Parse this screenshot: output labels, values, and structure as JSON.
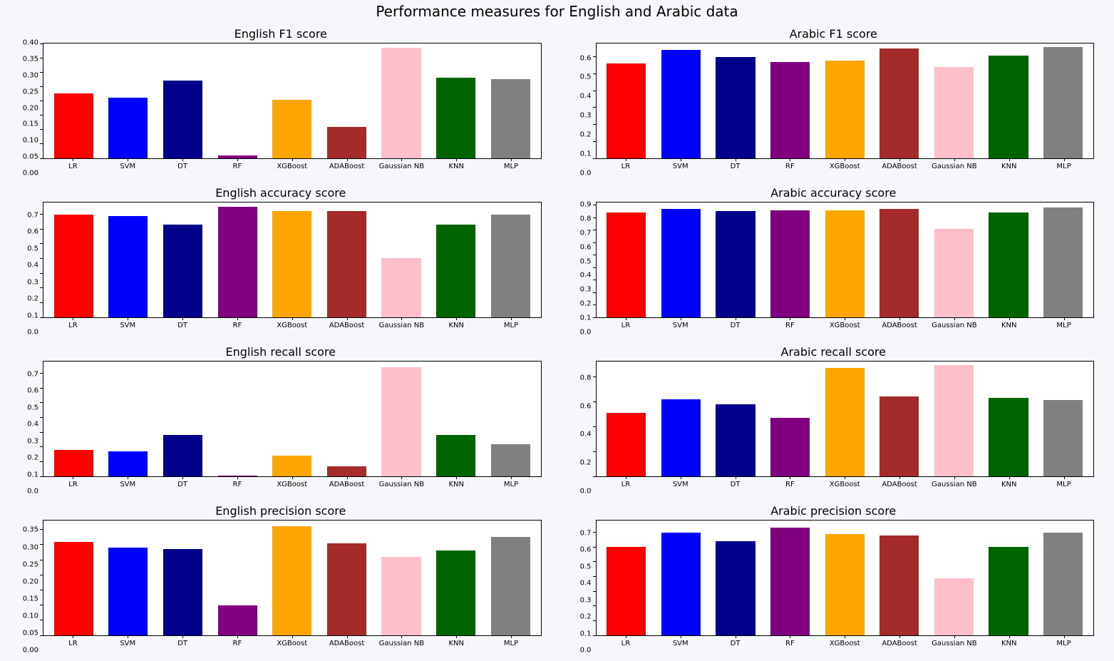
{
  "suptitle": "Performance measures for English and Arabic data",
  "background_color": "#f6f7fb",
  "plot_background": "#ffffff",
  "border_color": "#000000",
  "suptitle_fontsize": 20,
  "panel_title_fontsize": 16,
  "tick_fontsize": 10,
  "categories": [
    "LR",
    "SVM",
    "DT",
    "RF",
    "XGBoost",
    "ADABoost",
    "Gaussian NB",
    "KNN",
    "MLP"
  ],
  "bar_colors": [
    "#ff0000",
    "#0000ff",
    "#00008b",
    "#800080",
    "#ffa500",
    "#a52a2a",
    "#ffc0cb",
    "#006400",
    "#808080"
  ],
  "bar_width": 0.72,
  "panels": [
    {
      "title": "English F1 score",
      "type": "bar",
      "ylim": [
        0.0,
        0.4
      ],
      "ytick_step": 0.05,
      "ytick_decimals": 2,
      "values": [
        0.225,
        0.21,
        0.27,
        0.01,
        0.205,
        0.11,
        0.385,
        0.28,
        0.275
      ]
    },
    {
      "title": "Arabic F1 score",
      "type": "bar",
      "ylim": [
        0.0,
        0.68
      ],
      "ytick_step": 0.1,
      "ytick_decimals": 1,
      "values": [
        0.56,
        0.64,
        0.6,
        0.57,
        0.58,
        0.65,
        0.54,
        0.61,
        0.66
      ]
    },
    {
      "title": "English accuracy score",
      "type": "bar",
      "ylim": [
        0.0,
        0.78
      ],
      "ytick_step": 0.1,
      "ytick_decimals": 1,
      "values": [
        0.7,
        0.69,
        0.63,
        0.75,
        0.72,
        0.72,
        0.4,
        0.63,
        0.7
      ]
    },
    {
      "title": "Arabic accuracy score",
      "type": "bar",
      "ylim": [
        0.0,
        0.92
      ],
      "ytick_step": 0.1,
      "ytick_decimals": 1,
      "values": [
        0.84,
        0.87,
        0.85,
        0.86,
        0.86,
        0.87,
        0.71,
        0.84,
        0.88
      ]
    },
    {
      "title": "English recall score",
      "type": "bar",
      "ylim": [
        0.0,
        0.78
      ],
      "ytick_step": 0.1,
      "ytick_decimals": 1,
      "values": [
        0.18,
        0.17,
        0.28,
        0.005,
        0.14,
        0.07,
        0.74,
        0.28,
        0.22
      ]
    },
    {
      "title": "Arabic recall score",
      "type": "bar",
      "ylim": [
        0.0,
        0.92
      ],
      "ytick_step": 0.2,
      "ytick_decimals": 1,
      "values": [
        0.51,
        0.62,
        0.58,
        0.47,
        0.87,
        0.64,
        0.89,
        0.63,
        0.61
      ]
    },
    {
      "title": "English precision score",
      "type": "bar",
      "ylim": [
        0.0,
        0.38
      ],
      "ytick_step": 0.05,
      "ytick_decimals": 2,
      "values": [
        0.31,
        0.29,
        0.285,
        0.1,
        0.36,
        0.305,
        0.26,
        0.28,
        0.325
      ]
    },
    {
      "title": "Arabic precision score",
      "type": "bar",
      "ylim": [
        0.0,
        0.78
      ],
      "ytick_step": 0.1,
      "ytick_decimals": 1,
      "values": [
        0.6,
        0.7,
        0.64,
        0.73,
        0.69,
        0.68,
        0.39,
        0.6,
        0.7
      ]
    }
  ]
}
